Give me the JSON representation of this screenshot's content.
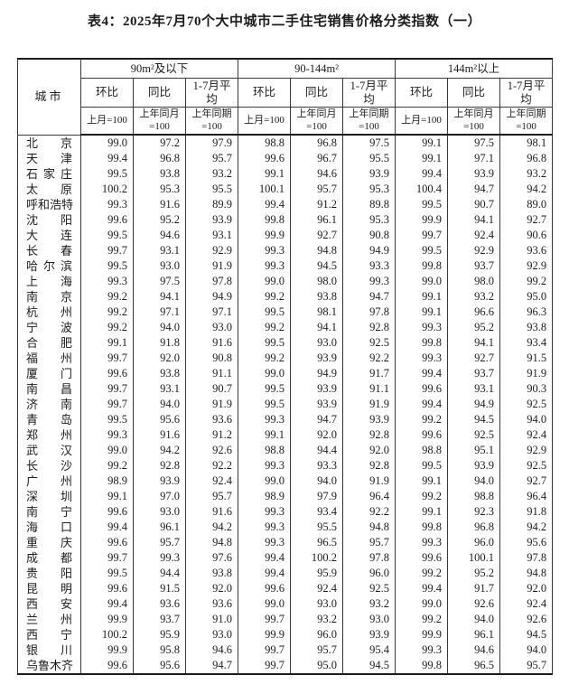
{
  "title": "表4：2025年7月70个大中城市二手住宅销售价格分类指数（一）",
  "colors": {
    "background": "#ffffff",
    "text": "#1c1c1c",
    "border": "#3a3a3a",
    "strong_border": "#1c1c1c"
  },
  "chart_data": {
    "type": "table",
    "title": "表4：2025年7月70个大中城市二手住宅销售价格分类指数（一）"
  },
  "table": {
    "city_header": "城市",
    "groups": [
      {
        "label": "90m²及以下",
        "columns": [
          {
            "name": "环比",
            "base": "上月=100"
          },
          {
            "name": "同比",
            "base": "上年同月=100"
          },
          {
            "name": "1-7月平均",
            "base": "上年同期=100"
          }
        ]
      },
      {
        "label": "90-144m²",
        "columns": [
          {
            "name": "环比",
            "base": "上月=100"
          },
          {
            "name": "同比",
            "base": "上年同月=100"
          },
          {
            "name": "1-7月平均",
            "base": "上年同期=100"
          }
        ]
      },
      {
        "label": "144m²以上",
        "columns": [
          {
            "name": "环比",
            "base": "上月=100"
          },
          {
            "name": "同比",
            "base": "上年同月=100"
          },
          {
            "name": "1-7月平均",
            "base": "上年同期=100"
          }
        ]
      }
    ],
    "rows": [
      {
        "city": "北京",
        "values": [
          "99.0",
          "97.2",
          "97.9",
          "98.8",
          "96.8",
          "97.5",
          "99.1",
          "97.5",
          "98.1"
        ]
      },
      {
        "city": "天津",
        "values": [
          "99.4",
          "96.8",
          "95.7",
          "99.6",
          "96.7",
          "95.5",
          "99.1",
          "97.1",
          "96.8"
        ]
      },
      {
        "city": "石家庄",
        "values": [
          "99.5",
          "93.8",
          "93.2",
          "99.1",
          "94.6",
          "93.9",
          "99.4",
          "93.9",
          "93.2"
        ]
      },
      {
        "city": "太原",
        "values": [
          "100.2",
          "95.3",
          "95.5",
          "100.1",
          "95.7",
          "95.3",
          "100.4",
          "94.7",
          "94.2"
        ]
      },
      {
        "city": "呼和浩特",
        "values": [
          "99.3",
          "91.6",
          "89.9",
          "99.4",
          "91.2",
          "89.8",
          "99.5",
          "90.7",
          "89.0"
        ]
      },
      {
        "city": "沈阳",
        "values": [
          "99.6",
          "95.2",
          "93.9",
          "99.8",
          "96.1",
          "95.3",
          "99.9",
          "94.1",
          "92.7"
        ]
      },
      {
        "city": "大连",
        "values": [
          "99.5",
          "94.6",
          "93.1",
          "99.9",
          "92.7",
          "90.8",
          "99.7",
          "92.4",
          "90.6"
        ]
      },
      {
        "city": "长春",
        "values": [
          "99.7",
          "93.1",
          "92.9",
          "99.3",
          "94.8",
          "94.9",
          "99.5",
          "92.9",
          "93.6"
        ]
      },
      {
        "city": "哈尔滨",
        "values": [
          "99.5",
          "93.0",
          "91.9",
          "99.3",
          "94.5",
          "93.3",
          "99.8",
          "93.7",
          "92.9"
        ]
      },
      {
        "city": "上海",
        "values": [
          "99.3",
          "97.5",
          "97.8",
          "99.0",
          "98.0",
          "99.3",
          "99.0",
          "98.0",
          "99.2"
        ]
      },
      {
        "city": "南京",
        "values": [
          "99.2",
          "94.1",
          "94.9",
          "99.2",
          "93.8",
          "94.7",
          "99.1",
          "93.2",
          "95.0"
        ]
      },
      {
        "city": "杭州",
        "values": [
          "99.2",
          "97.1",
          "97.1",
          "99.5",
          "98.1",
          "97.8",
          "99.1",
          "96.6",
          "96.3"
        ]
      },
      {
        "city": "宁波",
        "values": [
          "99.2",
          "94.0",
          "93.0",
          "99.2",
          "94.1",
          "92.8",
          "99.3",
          "95.2",
          "93.8"
        ]
      },
      {
        "city": "合肥",
        "values": [
          "99.1",
          "91.8",
          "91.6",
          "99.5",
          "93.0",
          "92.5",
          "99.8",
          "94.1",
          "93.4"
        ]
      },
      {
        "city": "福州",
        "values": [
          "99.7",
          "92.0",
          "90.8",
          "99.2",
          "93.9",
          "92.2",
          "99.3",
          "92.7",
          "91.5"
        ]
      },
      {
        "city": "厦门",
        "values": [
          "99.6",
          "93.8",
          "91.1",
          "99.0",
          "94.9",
          "91.7",
          "99.4",
          "93.7",
          "91.9"
        ]
      },
      {
        "city": "南昌",
        "values": [
          "99.7",
          "93.1",
          "90.7",
          "99.5",
          "93.9",
          "91.1",
          "99.6",
          "93.1",
          "90.3"
        ]
      },
      {
        "city": "济南",
        "values": [
          "99.7",
          "94.0",
          "91.9",
          "99.5",
          "93.9",
          "91.9",
          "99.4",
          "94.9",
          "92.5"
        ]
      },
      {
        "city": "青岛",
        "values": [
          "99.5",
          "95.6",
          "93.6",
          "99.3",
          "94.7",
          "93.9",
          "99.2",
          "94.5",
          "94.0"
        ]
      },
      {
        "city": "郑州",
        "values": [
          "99.3",
          "91.6",
          "91.2",
          "99.1",
          "92.0",
          "92.8",
          "99.6",
          "92.5",
          "92.4"
        ]
      },
      {
        "city": "武汉",
        "values": [
          "99.0",
          "94.2",
          "92.6",
          "98.8",
          "94.4",
          "92.0",
          "98.8",
          "95.1",
          "92.9"
        ]
      },
      {
        "city": "长沙",
        "values": [
          "99.2",
          "92.8",
          "92.2",
          "99.3",
          "93.3",
          "92.8",
          "99.5",
          "93.9",
          "92.5"
        ]
      },
      {
        "city": "广州",
        "values": [
          "98.9",
          "93.9",
          "92.4",
          "99.0",
          "94.0",
          "91.9",
          "99.1",
          "94.0",
          "92.7"
        ]
      },
      {
        "city": "深圳",
        "values": [
          "99.1",
          "97.0",
          "95.7",
          "98.9",
          "97.9",
          "96.4",
          "99.2",
          "98.8",
          "96.4"
        ]
      },
      {
        "city": "南宁",
        "values": [
          "99.6",
          "93.0",
          "91.6",
          "99.3",
          "93.4",
          "92.2",
          "99.1",
          "92.3",
          "91.8"
        ]
      },
      {
        "city": "海口",
        "values": [
          "99.4",
          "96.1",
          "94.2",
          "99.3",
          "95.5",
          "94.8",
          "99.8",
          "96.8",
          "94.2"
        ]
      },
      {
        "city": "重庆",
        "values": [
          "99.6",
          "95.7",
          "94.8",
          "99.3",
          "96.5",
          "95.7",
          "99.3",
          "96.0",
          "95.6"
        ]
      },
      {
        "city": "成都",
        "values": [
          "99.7",
          "99.3",
          "97.6",
          "99.4",
          "100.2",
          "97.8",
          "99.6",
          "100.1",
          "97.8"
        ]
      },
      {
        "city": "贵阳",
        "values": [
          "99.5",
          "94.4",
          "93.8",
          "99.4",
          "95.9",
          "96.0",
          "99.2",
          "95.2",
          "94.8"
        ]
      },
      {
        "city": "昆明",
        "values": [
          "99.6",
          "91.5",
          "92.0",
          "99.6",
          "92.4",
          "92.5",
          "99.4",
          "91.7",
          "92.0"
        ]
      },
      {
        "city": "西安",
        "values": [
          "99.4",
          "93.6",
          "93.6",
          "99.0",
          "93.0",
          "93.2",
          "99.0",
          "92.6",
          "92.4"
        ]
      },
      {
        "city": "兰州",
        "values": [
          "99.9",
          "93.7",
          "91.0",
          "99.7",
          "93.2",
          "93.0",
          "99.2",
          "94.0",
          "92.6"
        ]
      },
      {
        "city": "西宁",
        "values": [
          "100.2",
          "95.9",
          "93.0",
          "99.9",
          "96.0",
          "93.9",
          "99.9",
          "96.1",
          "94.5"
        ]
      },
      {
        "city": "银川",
        "values": [
          "99.9",
          "95.8",
          "94.6",
          "99.7",
          "95.7",
          "95.4",
          "99.3",
          "94.6",
          "94.0"
        ]
      },
      {
        "city": "乌鲁木齐",
        "values": [
          "99.6",
          "95.6",
          "94.7",
          "99.7",
          "95.0",
          "94.5",
          "99.8",
          "96.5",
          "95.7"
        ]
      }
    ]
  }
}
